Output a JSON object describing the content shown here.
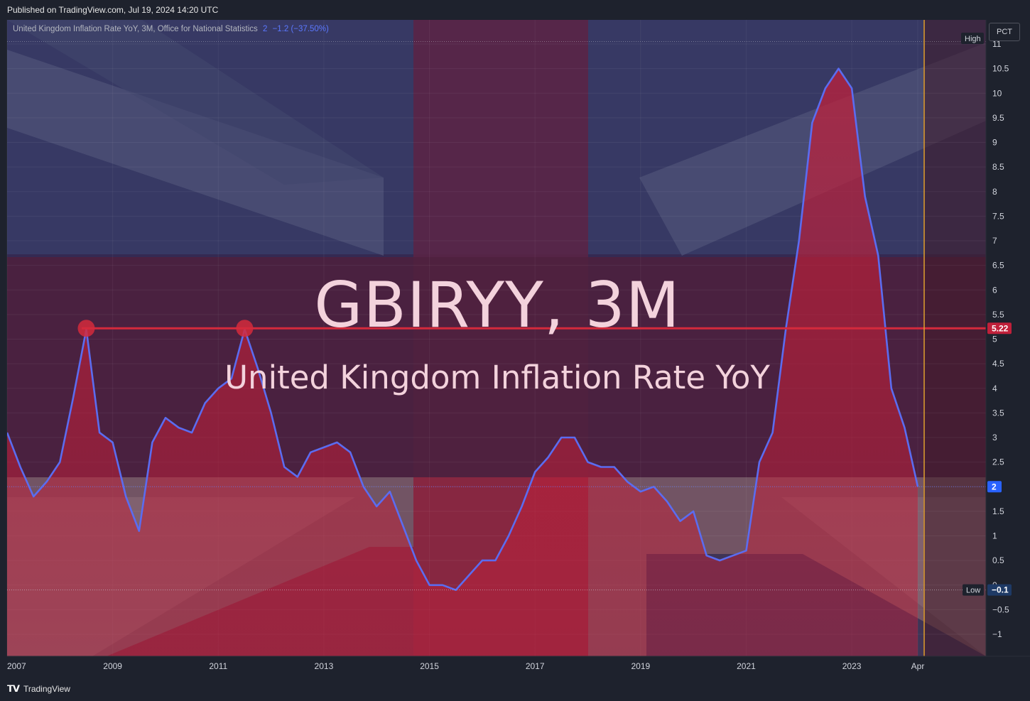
{
  "header": {
    "published": "Published on TradingView.com, Jul 19, 2024 14:20 UTC"
  },
  "legend": {
    "title": "United Kingdom Inflation Rate YoY, 3M, Office for National Statistics",
    "value": "2",
    "change": "−1.2 (−37.50%)"
  },
  "scale_button": "PCT",
  "overlay": {
    "symbol": "GBIRYY, 3M",
    "name": "United Kingdom Inflation Rate YoY"
  },
  "footer": {
    "brand": "TradingView"
  },
  "colors": {
    "line": "#5b6cf0",
    "fill": "#c0203a",
    "hline": "#d42a3c",
    "vline": "#e0a030",
    "current_badge": "#2962ff",
    "hline_badge": "#c0203a"
  },
  "chart_data": {
    "type": "area",
    "x": [
      "2007-01",
      "2007-04",
      "2007-07",
      "2007-10",
      "2008-01",
      "2008-04",
      "2008-07",
      "2008-10",
      "2009-01",
      "2009-04",
      "2009-07",
      "2009-10",
      "2010-01",
      "2010-04",
      "2010-07",
      "2010-10",
      "2011-01",
      "2011-04",
      "2011-07",
      "2011-10",
      "2012-01",
      "2012-04",
      "2012-07",
      "2012-10",
      "2013-01",
      "2013-04",
      "2013-07",
      "2013-10",
      "2014-01",
      "2014-04",
      "2014-07",
      "2014-10",
      "2015-01",
      "2015-04",
      "2015-07",
      "2015-10",
      "2016-01",
      "2016-04",
      "2016-07",
      "2016-10",
      "2017-01",
      "2017-04",
      "2017-07",
      "2017-10",
      "2018-01",
      "2018-04",
      "2018-07",
      "2018-10",
      "2019-01",
      "2019-04",
      "2019-07",
      "2019-10",
      "2020-01",
      "2020-04",
      "2020-07",
      "2020-10",
      "2021-01",
      "2021-04",
      "2021-07",
      "2021-10",
      "2022-01",
      "2022-04",
      "2022-07",
      "2022-10",
      "2023-01",
      "2023-04",
      "2023-07",
      "2023-10",
      "2024-01",
      "2024-04"
    ],
    "series": [
      {
        "values": [
          3.1,
          2.4,
          1.8,
          2.1,
          2.5,
          3.8,
          5.2,
          3.1,
          2.9,
          1.8,
          1.1,
          2.9,
          3.4,
          3.2,
          3.1,
          3.7,
          4.0,
          4.2,
          5.2,
          4.4,
          3.5,
          2.4,
          2.2,
          2.7,
          2.8,
          2.9,
          2.7,
          2.0,
          1.6,
          1.9,
          1.2,
          0.5,
          0.0,
          0.0,
          -0.1,
          0.2,
          0.5,
          0.5,
          1.0,
          1.6,
          2.3,
          2.6,
          3.0,
          3.0,
          2.5,
          2.4,
          2.4,
          2.1,
          1.9,
          2.0,
          1.7,
          1.3,
          1.5,
          0.6,
          0.5,
          0.6,
          0.7,
          2.5,
          3.1,
          5.2,
          7.0,
          9.4,
          10.1,
          10.5,
          10.1,
          7.9,
          6.7,
          4.0,
          3.2,
          2.0
        ]
      }
    ],
    "ylim": [
      -1.3,
      11.3
    ],
    "y_ticks": [
      "−1",
      "−0.5",
      "0",
      "0.5",
      "1",
      "1.5",
      "2",
      "2.5",
      "3",
      "3.5",
      "4",
      "4.5",
      "5",
      "5.5",
      "6",
      "6.5",
      "7",
      "7.5",
      "8",
      "8.5",
      "9",
      "9.5",
      "10",
      "10.5",
      "11"
    ],
    "x_ticks": [
      "2007",
      "2009",
      "2011",
      "2013",
      "2015",
      "2017",
      "2019",
      "2021",
      "2023",
      "Apr"
    ],
    "horizontal_line": {
      "value": 5.22,
      "label": "5.22"
    },
    "peaks_marked": [
      "2008-07",
      "2011-07"
    ],
    "current": {
      "value": 2,
      "label": "2"
    },
    "high_label": "High",
    "low": {
      "value": -0.1,
      "label": "−0.1",
      "tag": "Low"
    },
    "grid": true
  }
}
